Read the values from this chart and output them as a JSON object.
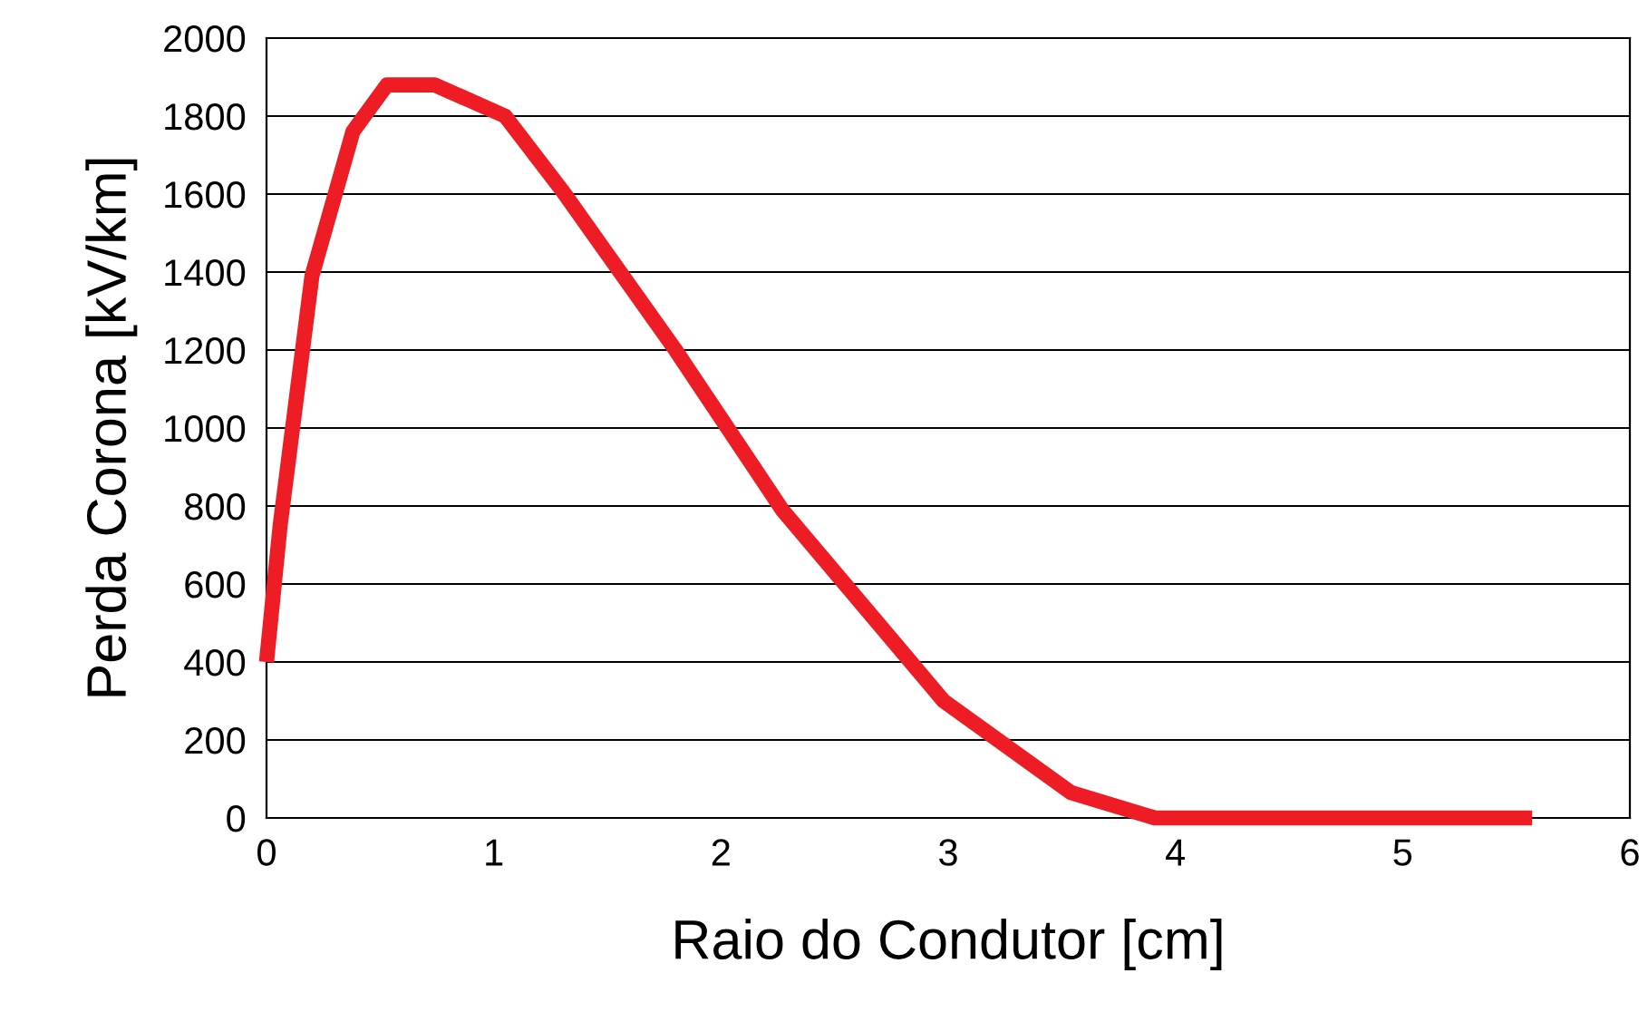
{
  "chart_data": {
    "type": "line",
    "xlabel": "Raio do Condutor [cm]",
    "ylabel": "Perda Corona [kV/km]",
    "series": [
      {
        "color": "#ee1c25",
        "x": [
          0,
          0.06,
          0.2,
          0.38,
          0.53,
          0.74,
          1.05,
          1.3,
          1.8,
          2.27,
          2.98,
          3.54,
          3.91,
          5.57
        ],
        "values": [
          400,
          750,
          1390,
          1760,
          1880,
          1880,
          1800,
          1610,
          1200,
          790,
          300,
          65,
          0,
          0
        ]
      }
    ],
    "xlim": [
      0,
      6
    ],
    "xticks": [
      0,
      1,
      2,
      3,
      4,
      5,
      6
    ],
    "ylim": [
      0,
      2000
    ],
    "yticks": [
      0,
      200,
      400,
      600,
      800,
      1000,
      1200,
      1400,
      1600,
      1800,
      2000
    ],
    "grid": "y",
    "marker": "none",
    "line_style": "solid",
    "legend": false
  }
}
